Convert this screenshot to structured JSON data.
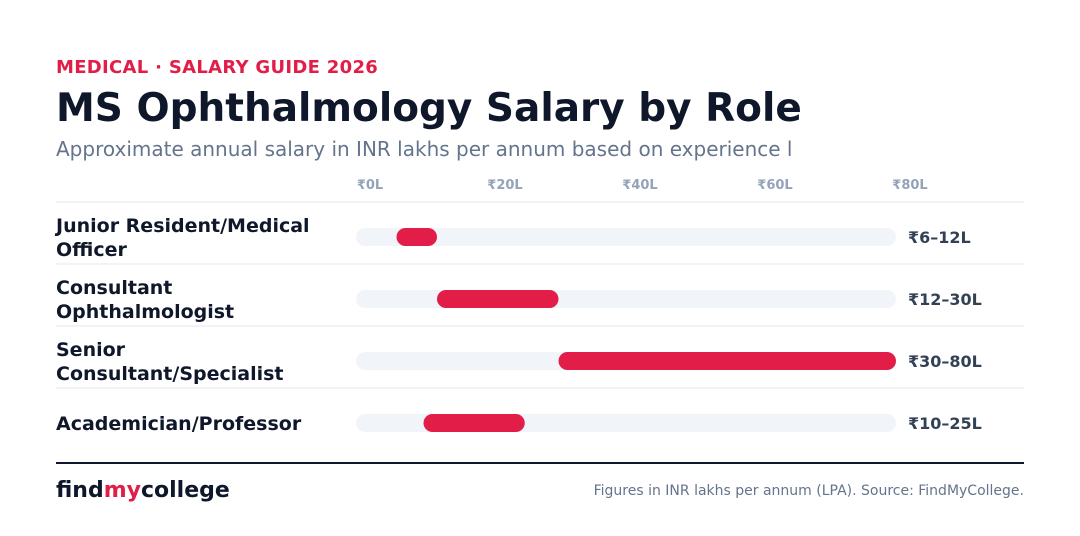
{
  "header": {
    "eyebrow": "MEDICAL · SALARY GUIDE 2026",
    "title": "MS Ophthalmology Salary by Role",
    "subtitle": "Approximate annual salary in INR lakhs per annum based on experience l"
  },
  "footer": {
    "brand_part1": "find",
    "brand_part2": "my",
    "brand_part3": "college",
    "source": "Figures in INR lakhs per annum (LPA). Source: FindMyCollege."
  },
  "colors": {
    "accent": "#e11d48",
    "track": "#f1f5f9",
    "text_dark": "#0f172a",
    "text_muted": "#64748b",
    "tick": "#94a3b8",
    "divider": "#e5e7eb"
  },
  "chart_data": {
    "type": "bar",
    "orientation": "horizontal-range",
    "xlim": [
      0,
      80
    ],
    "ticks": [
      {
        "value": 0,
        "label": "₹0L"
      },
      {
        "value": 20,
        "label": "₹20L"
      },
      {
        "value": 40,
        "label": "₹40L"
      },
      {
        "value": 60,
        "label": "₹60L"
      },
      {
        "value": 80,
        "label": "₹80L"
      }
    ],
    "rows": [
      {
        "label": [
          "Junior Resident/Medical",
          "Officer"
        ],
        "min": 6,
        "max": 12,
        "value_label": "₹6–12L"
      },
      {
        "label": [
          "Consultant",
          "Ophthalmologist"
        ],
        "min": 12,
        "max": 30,
        "value_label": "₹12–30L"
      },
      {
        "label": [
          "Senior",
          "Consultant/Specialist"
        ],
        "min": 30,
        "max": 80,
        "value_label": "₹30–80L"
      },
      {
        "label": [
          "Academician/Professor"
        ],
        "min": 10,
        "max": 25,
        "value_label": "₹10–25L"
      }
    ],
    "grid": false,
    "legend": "none"
  }
}
